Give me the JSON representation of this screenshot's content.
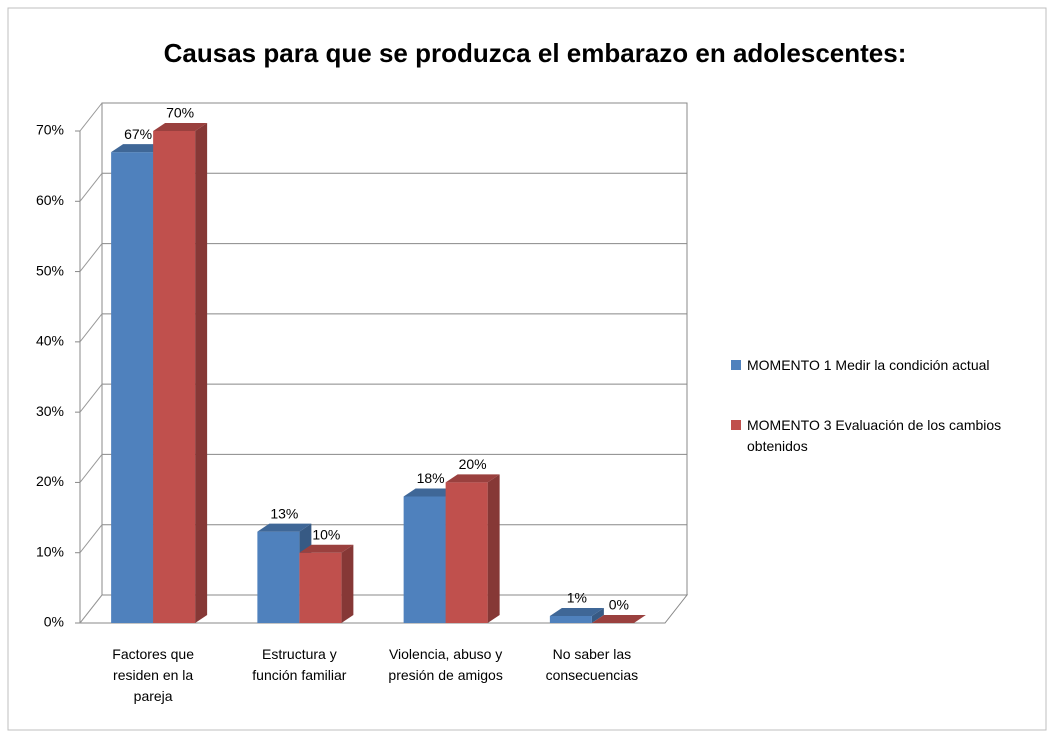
{
  "chart_data": {
    "type": "bar3d",
    "title": "Causas para que se produzca el embarazo en adolescentes:",
    "categories": [
      "Factores que residen en la pareja",
      "Estructura y función familiar",
      "Violencia, abuso y presión de amigos",
      "No saber las consecuencias"
    ],
    "series": [
      {
        "name": "MOMENTO 1 Medir la condición actual",
        "color": "#4f81bd",
        "values": [
          67,
          13,
          18,
          1
        ],
        "value_labels": [
          "67%",
          "13%",
          "18%",
          "1%"
        ]
      },
      {
        "name": "MOMENTO 3 Evaluación de los cambios obtenidos",
        "color": "#c0504d",
        "values": [
          70,
          10,
          20,
          0
        ],
        "value_labels": [
          "70%",
          "10%",
          "20%",
          "0%"
        ]
      }
    ],
    "ylim": [
      0,
      70
    ],
    "yticks": [
      {
        "value": 0,
        "label": "0%"
      },
      {
        "value": 10,
        "label": "10%"
      },
      {
        "value": 20,
        "label": "20%"
      },
      {
        "value": 30,
        "label": "30%"
      },
      {
        "value": 40,
        "label": "40%"
      },
      {
        "value": 50,
        "label": "50%"
      },
      {
        "value": 60,
        "label": "60%"
      },
      {
        "value": 70,
        "label": "70%"
      }
    ],
    "grid": true,
    "legend": "right"
  }
}
